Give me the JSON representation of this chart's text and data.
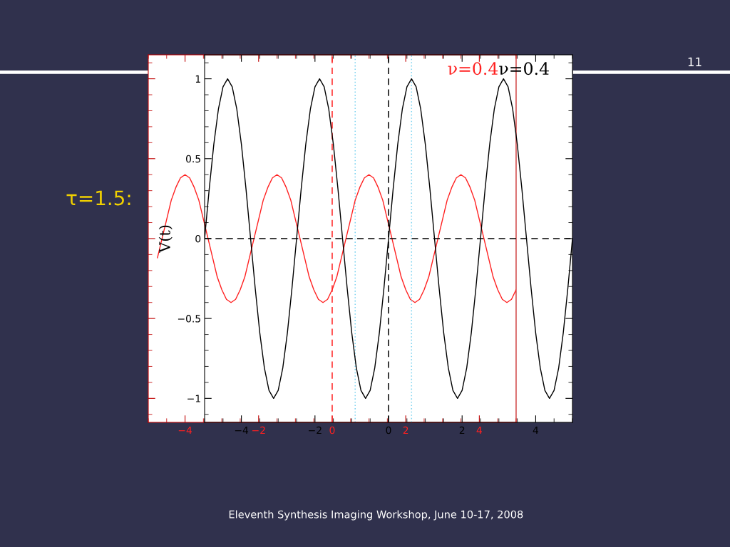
{
  "chart_data": [
    {
      "type": "line",
      "ylabel": "V(t)",
      "xlim": [
        -5,
        5
      ],
      "ylim": [
        -1.15,
        1.15
      ],
      "xticks": [
        -4,
        -2,
        0,
        2,
        4
      ],
      "yticks": [
        -1,
        -0.5,
        0,
        0.5,
        1
      ],
      "grid": false,
      "annotations": [
        "ν=0.4",
        "τ=1.5:",
        "11",
        "Eleventh Synthesis Imaging Workshop, June 10-17, 2008"
      ],
      "ref_lines": [
        {
          "axis": "x",
          "value": 0,
          "color": "#000000",
          "line_style": "dashed"
        },
        {
          "axis": "y",
          "value": 0,
          "color": "#000000",
          "line_style": "dashed"
        },
        {
          "axis": "x",
          "value": 0.625,
          "color": "#7fd4f0",
          "line_style": "dotted"
        }
      ],
      "series": [
        {
          "color": "#000000",
          "x": [
            -5,
            -4.875,
            -4.75,
            -4.625,
            -4.5,
            -4.375,
            -4.25,
            -4.125,
            -4,
            -3.875,
            -3.75,
            -3.625,
            -3.5,
            -3.375,
            -3.25,
            -3.125,
            -3,
            -2.875,
            -2.75,
            -2.625,
            -2.5,
            -2.375,
            -2.25,
            -2.125,
            -2,
            -1.875,
            -1.75,
            -1.625,
            -1.5,
            -1.375,
            -1.25,
            -1.125,
            -1,
            -0.875,
            -0.75,
            -0.625,
            -0.5,
            -0.375,
            -0.25,
            -0.125,
            0,
            0.125,
            0.25,
            0.375,
            0.5,
            0.625,
            0.75,
            0.875,
            1,
            1.125,
            1.25,
            1.375,
            1.5,
            1.625,
            1.75,
            1.875,
            2,
            2.125,
            2.25,
            2.375,
            2.5,
            2.625,
            2.75,
            2.875,
            3,
            3.125,
            3.25,
            3.375,
            3.5,
            3.625,
            3.75,
            3.875,
            4,
            4.125,
            4.25,
            4.375,
            4.5,
            4.625,
            4.75,
            4.875,
            5
          ],
          "values": [
            0,
            0.31,
            0.59,
            0.81,
            0.95,
            1,
            0.95,
            0.81,
            0.59,
            0.31,
            0,
            -0.31,
            -0.59,
            -0.81,
            -0.95,
            -1,
            -0.95,
            -0.81,
            -0.59,
            -0.31,
            0,
            0.31,
            0.59,
            0.81,
            0.95,
            1,
            0.95,
            0.81,
            0.59,
            0.31,
            0,
            -0.31,
            -0.59,
            -0.81,
            -0.95,
            -1,
            -0.95,
            -0.81,
            -0.59,
            -0.31,
            0,
            0.31,
            0.59,
            0.81,
            0.95,
            1,
            0.95,
            0.81,
            0.59,
            0.31,
            0,
            -0.31,
            -0.59,
            -0.81,
            -0.95,
            -1,
            -0.95,
            -0.81,
            -0.59,
            -0.31,
            0,
            0.31,
            0.59,
            0.81,
            0.95,
            1,
            0.95,
            0.81,
            0.59,
            0.31,
            0,
            -0.31,
            -0.59,
            -0.81,
            -0.95,
            -1,
            -0.95,
            -0.81,
            -0.59,
            -0.31,
            0
          ]
        }
      ]
    },
    {
      "type": "line",
      "xlim": [
        -5,
        5
      ],
      "ylim": [
        -1.15,
        1.15
      ],
      "xticks": [
        -4,
        -2,
        0,
        2,
        4
      ],
      "tick_labels": "x",
      "grid": false,
      "annotations": [
        "ν=0.4"
      ],
      "ref_lines": [
        {
          "axis": "x",
          "value": 0,
          "color": "#ff2020",
          "line_style": "dashed"
        },
        {
          "axis": "x",
          "value": 0.625,
          "color": "#7fd4f0",
          "line_style": "dotted"
        }
      ],
      "series": [
        {
          "color": "#ff2020",
          "x": [
            -4.75,
            -4.625,
            -4.5,
            -4.375,
            -4.25,
            -4.125,
            -4,
            -3.875,
            -3.75,
            -3.625,
            -3.5,
            -3.375,
            -3.25,
            -3.125,
            -3,
            -2.875,
            -2.75,
            -2.625,
            -2.5,
            -2.375,
            -2.25,
            -2.125,
            -2,
            -1.875,
            -1.75,
            -1.625,
            -1.5,
            -1.375,
            -1.25,
            -1.125,
            -1,
            -0.875,
            -0.75,
            -0.625,
            -0.5,
            -0.375,
            -0.25,
            -0.125,
            0,
            0.125,
            0.25,
            0.375,
            0.5,
            0.625,
            0.75,
            0.875,
            1,
            1.125,
            1.25,
            1.375,
            1.5,
            1.625,
            1.75,
            1.875,
            2,
            2.125,
            2.25,
            2.375,
            2.5,
            2.625,
            2.75,
            2.875,
            3,
            3.125,
            3.25,
            3.375,
            3.5,
            3.625,
            3.75,
            3.875,
            4,
            4.125,
            4.25,
            4.375,
            4.5,
            4.625,
            4.75,
            4.875,
            5
          ],
          "values": [
            -0.12,
            0,
            0.12,
            0.24,
            0.32,
            0.38,
            0.4,
            0.38,
            0.32,
            0.24,
            0.12,
            0,
            -0.12,
            -0.24,
            -0.32,
            -0.38,
            -0.4,
            -0.38,
            -0.32,
            -0.24,
            -0.12,
            0,
            0.12,
            0.24,
            0.32,
            0.38,
            0.4,
            0.38,
            0.32,
            0.24,
            0.12,
            0,
            -0.12,
            -0.24,
            -0.32,
            -0.38,
            -0.4,
            -0.38,
            -0.32,
            -0.24,
            -0.12,
            0,
            0.12,
            0.24,
            0.32,
            0.38,
            0.4,
            0.38,
            0.32,
            0.24,
            0.12,
            0,
            -0.12,
            -0.24,
            -0.32,
            -0.38,
            -0.4,
            -0.38,
            -0.32,
            -0.24,
            -0.12,
            0,
            0.12,
            0.24,
            0.32,
            0.38,
            0.4,
            0.38,
            0.32,
            0.24,
            0.12,
            0,
            -0.12,
            -0.24,
            -0.32,
            -0.38,
            -0.4,
            -0.38,
            -0.32
          ]
        }
      ]
    }
  ]
}
